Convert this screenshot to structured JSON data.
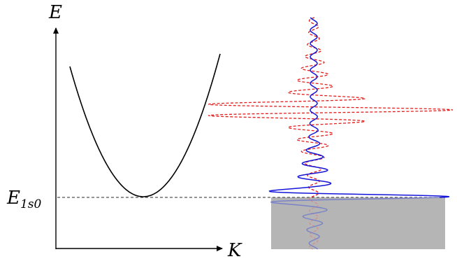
{
  "axes": {
    "y_label": "E",
    "x_label": "K",
    "level_label_main": "E",
    "level_label_sub": "1s0"
  },
  "colors": {
    "curve": "#000000",
    "solid_wave": "#1515d9",
    "dashed_wave": "#e11d1d",
    "shaded_region": "#b5b5b5",
    "level_line": "#555555",
    "axis": "#000000"
  }
}
